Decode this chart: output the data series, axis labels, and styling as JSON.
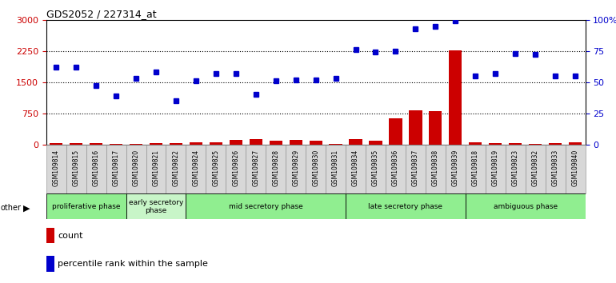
{
  "title": "GDS2052 / 227314_at",
  "samples": [
    "GSM109814",
    "GSM109815",
    "GSM109816",
    "GSM109817",
    "GSM109820",
    "GSM109821",
    "GSM109822",
    "GSM109824",
    "GSM109825",
    "GSM109826",
    "GSM109827",
    "GSM109828",
    "GSM109829",
    "GSM109830",
    "GSM109831",
    "GSM109834",
    "GSM109835",
    "GSM109836",
    "GSM109837",
    "GSM109838",
    "GSM109839",
    "GSM109818",
    "GSM109819",
    "GSM109823",
    "GSM109832",
    "GSM109833",
    "GSM109840"
  ],
  "count": [
    30,
    35,
    30,
    20,
    15,
    25,
    30,
    40,
    50,
    100,
    120,
    90,
    110,
    90,
    20,
    130,
    80,
    620,
    820,
    800,
    2270,
    40,
    30,
    25,
    20,
    25,
    40
  ],
  "percentile_pct": [
    62,
    62,
    47,
    39,
    53,
    58,
    35,
    51,
    57,
    57,
    40,
    51,
    52,
    52,
    53,
    76,
    74,
    75,
    93,
    95,
    99,
    55,
    57,
    73,
    72,
    55,
    55
  ],
  "phases": [
    {
      "label": "proliferative phase",
      "start": 0,
      "end": 4,
      "color": "#90EE90"
    },
    {
      "label": "early secretory\nphase",
      "start": 4,
      "end": 7,
      "color": "#c8f5c8"
    },
    {
      "label": "mid secretory phase",
      "start": 7,
      "end": 15,
      "color": "#90EE90"
    },
    {
      "label": "late secretory phase",
      "start": 15,
      "end": 21,
      "color": "#90EE90"
    },
    {
      "label": "ambiguous phase",
      "start": 21,
      "end": 27,
      "color": "#90EE90"
    }
  ],
  "ylim_left": [
    0,
    3000
  ],
  "ylim_right": [
    0,
    100
  ],
  "left_yticks": [
    0,
    750,
    1500,
    2250,
    3000
  ],
  "right_yticks": [
    0,
    25,
    50,
    75,
    100
  ],
  "bar_color": "#cc0000",
  "dot_color": "#0000cc",
  "bg_color": "#ffffff",
  "left_axis_color": "#cc0000",
  "right_axis_color": "#0000cc"
}
